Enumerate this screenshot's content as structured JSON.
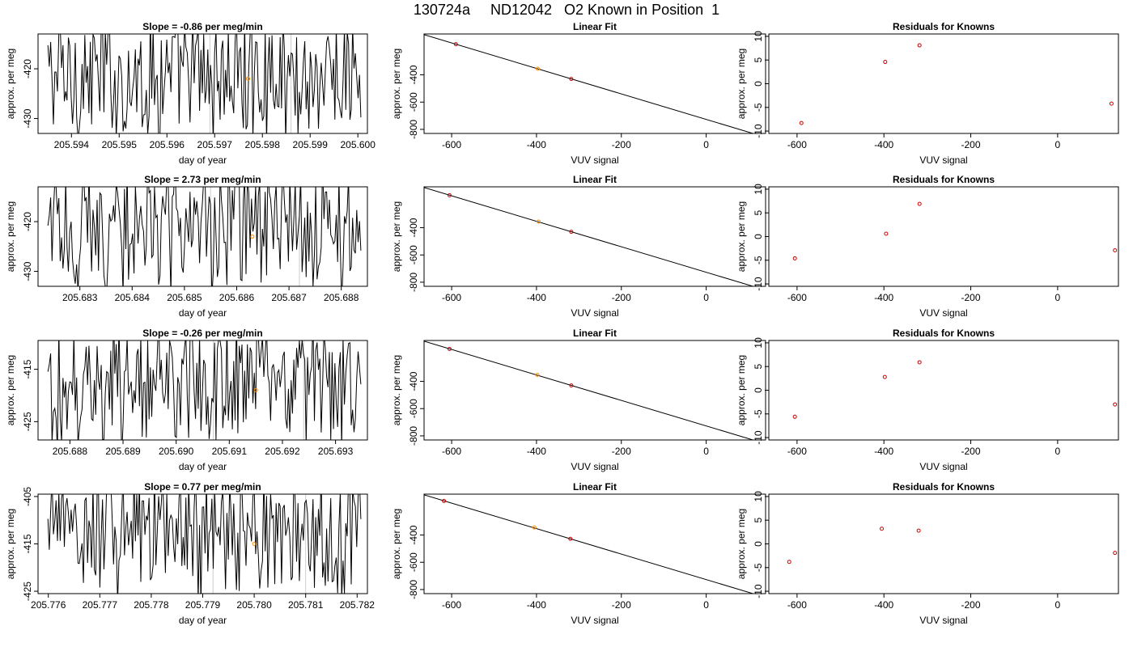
{
  "figure_title": "130724a     ND12042   O2 Known in Position  1",
  "colors": {
    "trace": "#000000",
    "fit_line": "#000000",
    "known_points": "#cc0000",
    "highlight_point": "#ff8c00",
    "marker_lines": "#cccccc",
    "axis": "#000000"
  },
  "chart_data": [
    {
      "row": 1,
      "panel": "time-series",
      "type": "line",
      "title": "Slope =  -0.86  per meg/min",
      "xlabel": "day of year",
      "ylabel": "approx. per meg",
      "xlim": [
        205.5933,
        205.6002
      ],
      "ylim": [
        -433,
        -413
      ],
      "xticks": [
        "205.594",
        "205.595",
        "205.596",
        "205.597",
        "205.598",
        "205.599",
        "205.600"
      ],
      "yticks": [
        "-420",
        "-430"
      ],
      "vlines": [
        205.5969,
        205.5986
      ],
      "highlight": {
        "x": 205.5977,
        "y": -422
      }
    },
    {
      "row": 1,
      "panel": "linear-fit",
      "type": "scatter",
      "title": "Linear Fit",
      "xlabel": "VUV signal",
      "ylabel": "approx. per meg",
      "xlim": [
        -665,
        140
      ],
      "ylim": [
        -830,
        -100
      ],
      "xticks": [
        "-600",
        "-400",
        "-200",
        "0"
      ],
      "yticks": [
        "-400",
        "-600",
        "-800"
      ],
      "points": [
        {
          "x": -590,
          "y": -175
        },
        {
          "x": -397,
          "y": -355
        },
        {
          "x": -318,
          "y": -430
        },
        {
          "x": 124,
          "y": -845
        }
      ],
      "highlight_index": 1,
      "fit": {
        "slope": -0.935,
        "intercept": -727
      }
    },
    {
      "row": 1,
      "panel": "residuals",
      "type": "scatter",
      "title": "Residuals for Knowns",
      "xlabel": "VUV signal",
      "ylabel": "approx. per meg",
      "xlim": [
        -665,
        140
      ],
      "ylim": [
        -10.5,
        10.5
      ],
      "xticks": [
        "-600",
        "-400",
        "-200",
        "0"
      ],
      "yticks": [
        "10",
        "5",
        "0",
        "-5",
        "-10"
      ],
      "points": [
        {
          "x": -590,
          "y": -8.3
        },
        {
          "x": -397,
          "y": 4.6
        },
        {
          "x": -318,
          "y": 8.1
        },
        {
          "x": 124,
          "y": -4.2
        }
      ]
    },
    {
      "row": 2,
      "panel": "time-series",
      "type": "line",
      "title": "Slope =  2.73  per meg/min",
      "xlabel": "day of year",
      "ylabel": "approx. per meg",
      "xlim": [
        205.6822,
        205.6885
      ],
      "ylim": [
        -433,
        -413
      ],
      "xticks": [
        "205.683",
        "205.684",
        "205.685",
        "205.686",
        "205.687",
        "205.688"
      ],
      "yticks": [
        "-420",
        "-430"
      ],
      "vlines": [
        205.6855,
        205.6872
      ],
      "highlight": {
        "x": 205.6863,
        "y": -423
      }
    },
    {
      "row": 2,
      "panel": "linear-fit",
      "type": "scatter",
      "title": "Linear Fit",
      "xlabel": "VUV signal",
      "ylabel": "approx. per meg",
      "xlim": [
        -665,
        140
      ],
      "ylim": [
        -830,
        -100
      ],
      "xticks": [
        "-600",
        "-400",
        "-200",
        "0"
      ],
      "yticks": [
        "-400",
        "-600",
        "-800"
      ],
      "points": [
        {
          "x": -605,
          "y": -162
        },
        {
          "x": -395,
          "y": -355
        },
        {
          "x": -318,
          "y": -430
        },
        {
          "x": 132,
          "y": -845
        }
      ],
      "highlight_index": 1,
      "fit": {
        "slope": -0.935,
        "intercept": -727
      }
    },
    {
      "row": 2,
      "panel": "residuals",
      "type": "scatter",
      "title": "Residuals for Knowns",
      "xlabel": "VUV signal",
      "ylabel": "approx. per meg",
      "xlim": [
        -665,
        140
      ],
      "ylim": [
        -10.5,
        10.5
      ],
      "xticks": [
        "-600",
        "-400",
        "-200",
        "0"
      ],
      "yticks": [
        "10",
        "5",
        "0",
        "-5",
        "-10"
      ],
      "points": [
        {
          "x": -605,
          "y": -4.6
        },
        {
          "x": -395,
          "y": 0.6
        },
        {
          "x": -318,
          "y": 6.9
        },
        {
          "x": 132,
          "y": -2.9
        }
      ]
    },
    {
      "row": 3,
      "panel": "time-series",
      "type": "line",
      "title": "Slope =  -0.26  per meg/min",
      "xlabel": "day of year",
      "ylabel": "approx. per meg",
      "xlim": [
        205.6874,
        205.6936
      ],
      "ylim": [
        -428.5,
        -409.5
      ],
      "xticks": [
        "205.688",
        "205.689",
        "205.690",
        "205.691",
        "205.692",
        "205.693"
      ],
      "yticks": [
        "-415",
        "-425"
      ],
      "vlines": [
        205.6907,
        205.6924
      ],
      "highlight": {
        "x": 205.6915,
        "y": -419
      }
    },
    {
      "row": 3,
      "panel": "linear-fit",
      "type": "scatter",
      "title": "Linear Fit",
      "xlabel": "VUV signal",
      "ylabel": "approx. per meg",
      "xlim": [
        -665,
        140
      ],
      "ylim": [
        -830,
        -100
      ],
      "xticks": [
        "-600",
        "-400",
        "-200",
        "0"
      ],
      "yticks": [
        "-400",
        "-600",
        "-800"
      ],
      "points": [
        {
          "x": -605,
          "y": -162
        },
        {
          "x": -398,
          "y": -352
        },
        {
          "x": -318,
          "y": -430
        },
        {
          "x": 132,
          "y": -845
        }
      ],
      "highlight_index": 1,
      "fit": {
        "slope": -0.935,
        "intercept": -727
      }
    },
    {
      "row": 3,
      "panel": "residuals",
      "type": "scatter",
      "title": "Residuals for Knowns",
      "xlabel": "VUV signal",
      "ylabel": "approx. per meg",
      "xlim": [
        -665,
        140
      ],
      "ylim": [
        -10.5,
        10.5
      ],
      "xticks": [
        "-600",
        "-400",
        "-200",
        "0"
      ],
      "yticks": [
        "10",
        "5",
        "0",
        "-5",
        "-10"
      ],
      "points": [
        {
          "x": -605,
          "y": -5.6
        },
        {
          "x": -398,
          "y": 2.8
        },
        {
          "x": -318,
          "y": 5.9
        },
        {
          "x": 132,
          "y": -3.0
        }
      ]
    },
    {
      "row": 4,
      "panel": "time-series",
      "type": "line",
      "title": "Slope =  0.77  per meg/min",
      "xlabel": "day of year",
      "ylabel": "approx. per meg",
      "xlim": [
        205.7758,
        205.7822
      ],
      "ylim": [
        -425.5,
        -404.5
      ],
      "xticks": [
        "205.776",
        "205.777",
        "205.778",
        "205.779",
        "205.780",
        "205.781",
        "205.782"
      ],
      "yticks": [
        "-405",
        "-415",
        "-425"
      ],
      "vlines": [
        205.7792,
        205.781
      ],
      "highlight": {
        "x": 205.78,
        "y": -415
      }
    },
    {
      "row": 4,
      "panel": "linear-fit",
      "type": "scatter",
      "title": "Linear Fit",
      "xlabel": "VUV signal",
      "ylabel": "approx. per meg",
      "xlim": [
        -665,
        140
      ],
      "ylim": [
        -830,
        -100
      ],
      "xticks": [
        "-600",
        "-400",
        "-200",
        "0"
      ],
      "yticks": [
        "-400",
        "-600",
        "-800"
      ],
      "points": [
        {
          "x": -618,
          "y": -150
        },
        {
          "x": -405,
          "y": -345
        },
        {
          "x": -320,
          "y": -428
        },
        {
          "x": 132,
          "y": -845
        }
      ],
      "highlight_index": 1,
      "fit": {
        "slope": -0.935,
        "intercept": -727
      }
    },
    {
      "row": 4,
      "panel": "residuals",
      "type": "scatter",
      "title": "Residuals for Knowns",
      "xlabel": "VUV signal",
      "ylabel": "approx. per meg",
      "xlim": [
        -665,
        140
      ],
      "ylim": [
        -10.5,
        10.5
      ],
      "xticks": [
        "-600",
        "-400",
        "-200",
        "0"
      ],
      "yticks": [
        "10",
        "5",
        "0",
        "-5",
        "-10"
      ],
      "points": [
        {
          "x": -618,
          "y": -3.8
        },
        {
          "x": -405,
          "y": 3.2
        },
        {
          "x": -320,
          "y": 2.8
        },
        {
          "x": 132,
          "y": -1.9
        }
      ]
    }
  ]
}
